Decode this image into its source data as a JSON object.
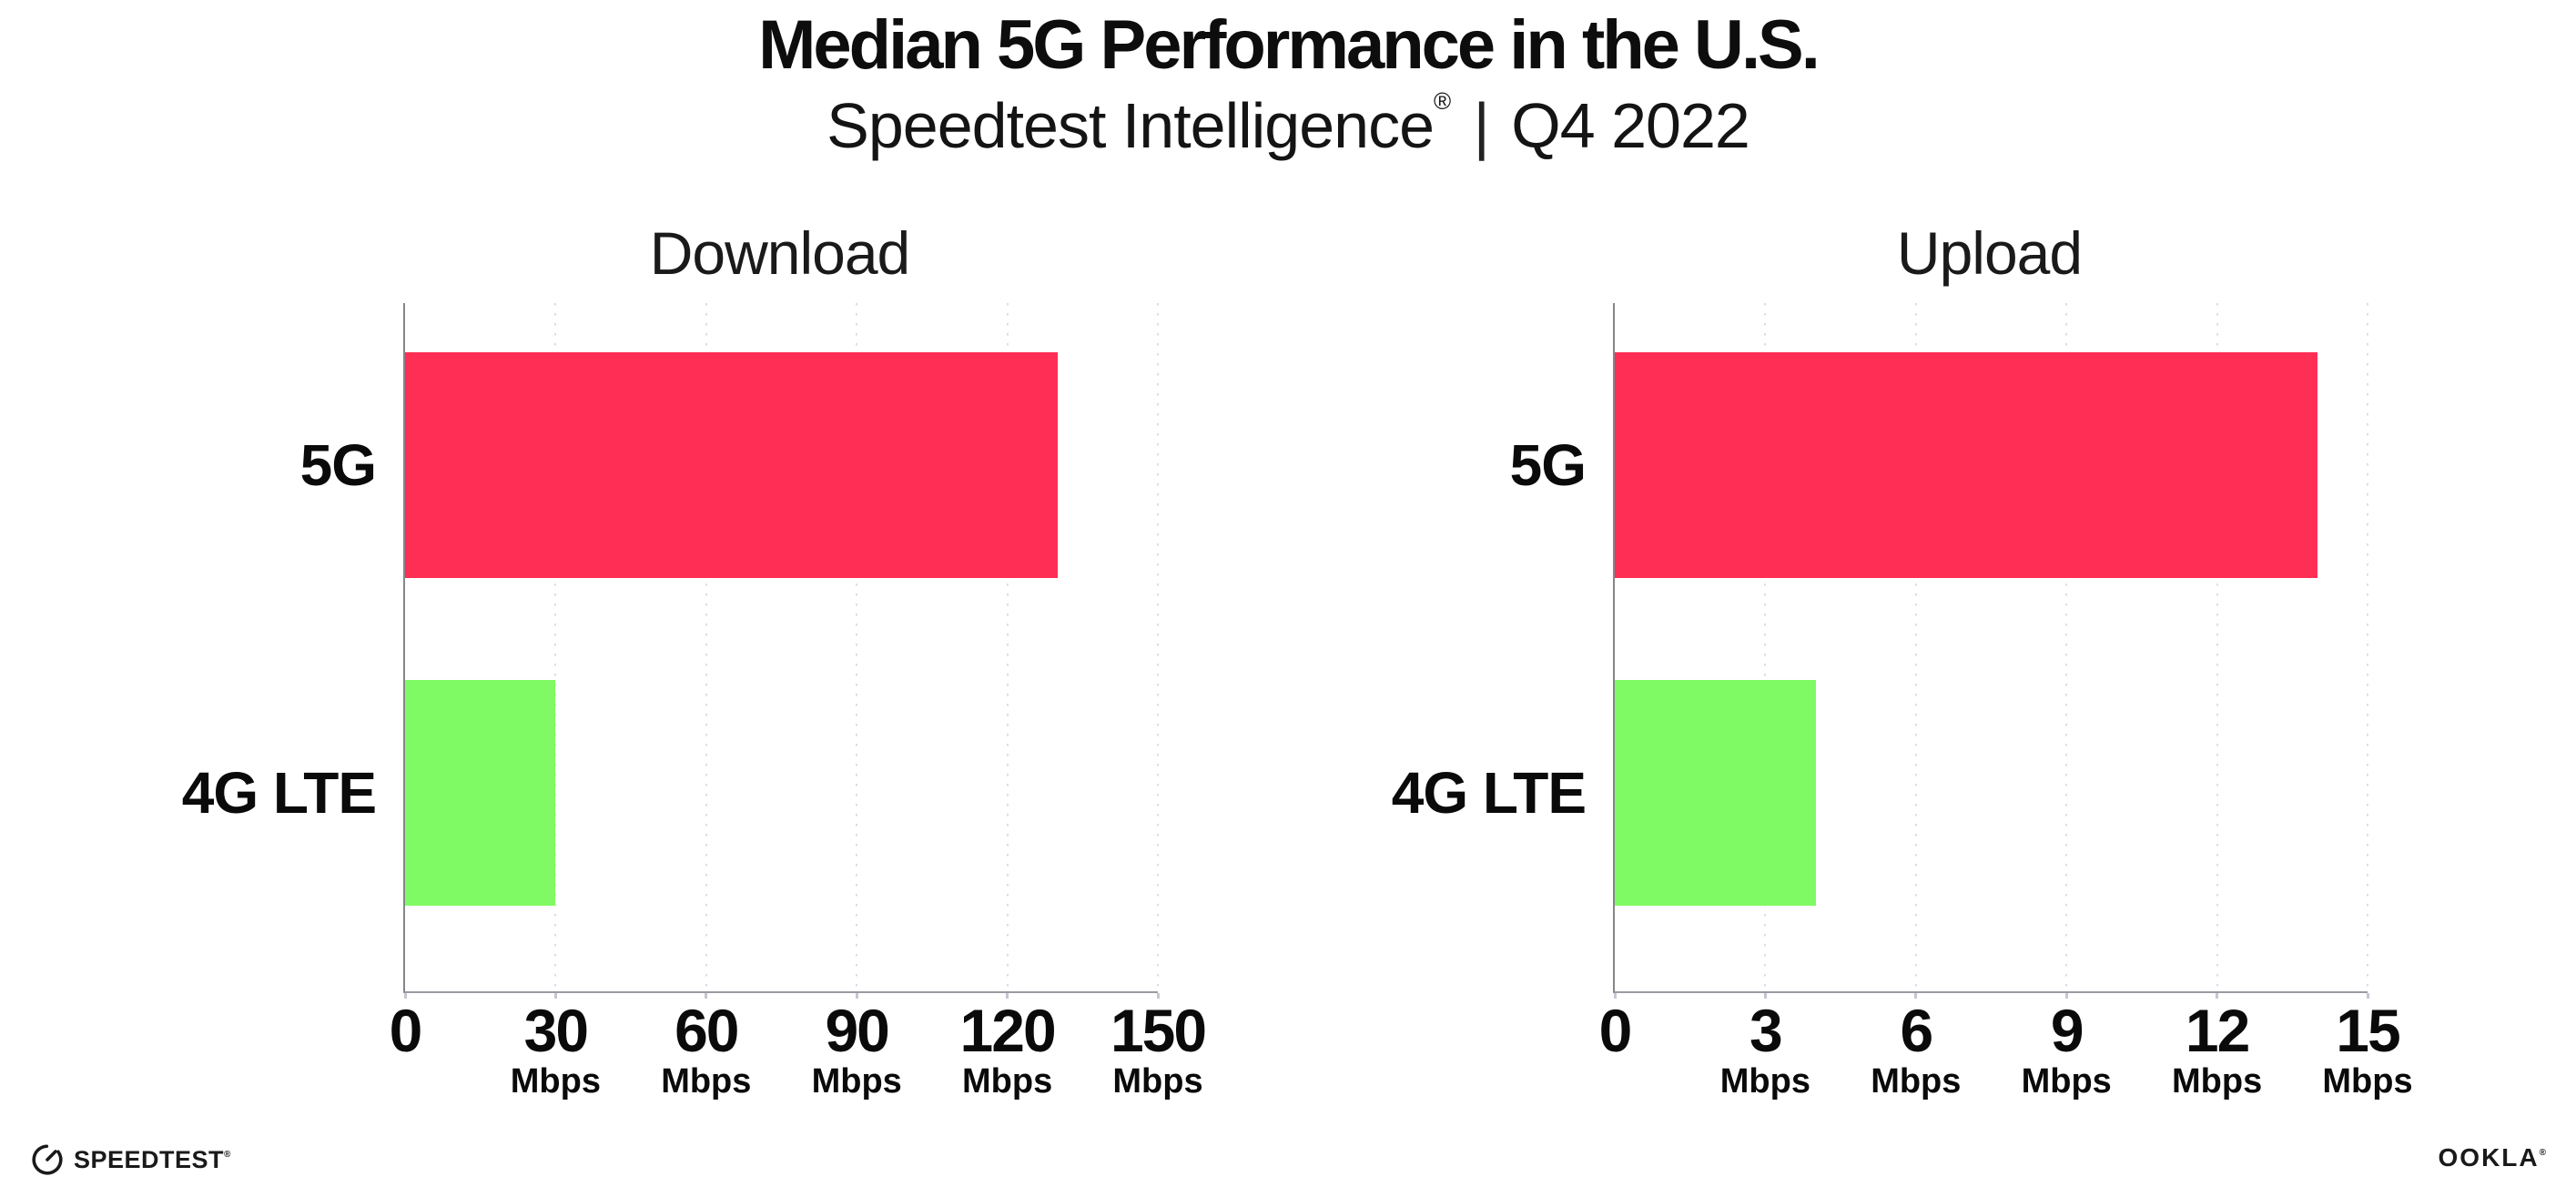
{
  "header": {
    "title": "Median 5G Performance in the U.S.",
    "subtitle_brand": "Speedtest Intelligence",
    "subtitle_reg": "®",
    "subtitle_divider": "|",
    "subtitle_period": "Q4 2022"
  },
  "chart_data": [
    {
      "type": "bar",
      "orientation": "horizontal",
      "title": "Download",
      "categories": [
        "5G",
        "4G LTE"
      ],
      "values": [
        130,
        30
      ],
      "unit": "Mbps",
      "xlim": [
        0,
        150
      ],
      "xticks": [
        0,
        30,
        60,
        90,
        120,
        150
      ],
      "bar_colors": [
        "#ff2e55",
        "#80fa64"
      ],
      "grid": "vertical-dotted",
      "legend": "none"
    },
    {
      "type": "bar",
      "orientation": "horizontal",
      "title": "Upload",
      "categories": [
        "5G",
        "4G LTE"
      ],
      "values": [
        14,
        4
      ],
      "unit": "Mbps",
      "xlim": [
        0,
        15
      ],
      "xticks": [
        0,
        3,
        6,
        9,
        12,
        15
      ],
      "bar_colors": [
        "#ff2e55",
        "#80fa64"
      ],
      "grid": "vertical-dotted",
      "legend": "none"
    }
  ],
  "footer": {
    "speedtest_label": "SPEEDTEST",
    "speedtest_mark": "®",
    "ookla_label": "OOKLA",
    "ookla_mark": "®"
  },
  "icons": {
    "speedtest_gauge": "circular speedometer gauge with needle pointing up-right"
  },
  "colors": {
    "bar_5g": "#ff2e55",
    "bar_4g_lte": "#80fa64",
    "axis": "#8a8a92",
    "gridline_dots": "#dcdce8",
    "text": "#0d0d0d"
  }
}
